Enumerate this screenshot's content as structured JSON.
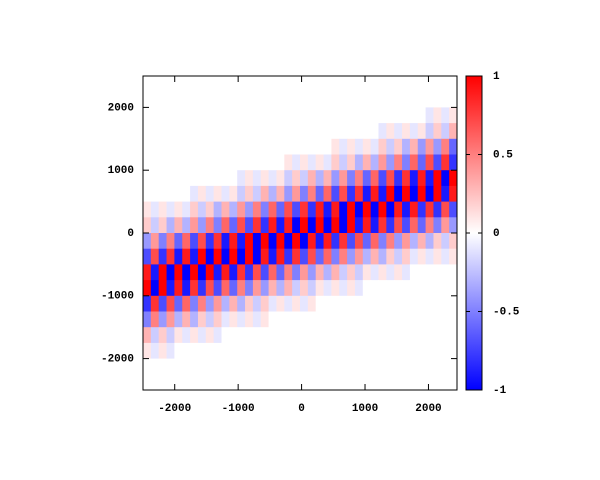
{
  "chart_data": {
    "type": "heatmap",
    "xlim": [
      -2500,
      2450
    ],
    "ylim": [
      -2500,
      2500
    ],
    "xticks": [
      -2000,
      -1000,
      0,
      1000,
      2000
    ],
    "yticks": [
      -2000,
      -1000,
      0,
      1000,
      2000
    ],
    "cblim": [
      -1,
      1
    ],
    "cbticks": [
      -1,
      -0.5,
      0,
      0.5,
      1
    ],
    "colors": [
      "#0000ff",
      "#ffffff",
      "#ff0000"
    ],
    "z": [
      [
        0,
        0,
        0,
        0,
        0,
        0,
        0,
        0,
        0,
        0,
        0,
        0,
        0,
        0,
        0,
        0,
        0,
        0,
        0,
        0,
        0,
        0,
        0,
        0,
        0,
        0,
        0,
        0,
        0,
        0,
        0,
        0,
        0,
        0,
        0,
        0,
        0,
        0,
        0,
        0
      ],
      [
        0,
        0,
        0,
        0,
        0,
        0,
        0,
        0,
        0,
        0,
        0,
        0,
        0,
        0,
        0,
        0,
        0,
        0,
        0,
        0,
        0,
        0,
        0,
        0,
        0,
        0,
        0,
        0,
        0,
        0,
        0,
        0,
        0,
        0,
        0,
        0,
        0,
        0,
        0,
        0
      ],
      [
        0,
        0,
        0,
        0,
        0,
        0,
        0,
        0,
        0,
        0,
        0,
        0,
        0,
        0,
        0,
        0,
        0,
        0,
        0,
        0,
        0,
        0,
        0,
        0,
        0,
        0,
        0,
        0,
        0,
        0,
        0,
        0,
        0,
        0,
        0,
        0,
        -0.1,
        0.1,
        -0.1,
        0.1
      ],
      [
        0,
        0,
        0,
        0,
        0,
        0,
        0,
        0,
        0,
        0,
        0,
        0,
        0,
        0,
        0,
        0,
        0,
        0,
        0,
        0,
        0,
        0,
        0,
        0,
        0,
        0,
        0,
        0,
        0,
        0,
        -0.1,
        0.1,
        -0.1,
        0.1,
        -0.1,
        0.1,
        -0.2,
        0.2,
        -0.2,
        0.3
      ],
      [
        0,
        0,
        0,
        0,
        0,
        0,
        0,
        0,
        0,
        0,
        0,
        0,
        0,
        0,
        0,
        0,
        0,
        0,
        0,
        0,
        0,
        0,
        0,
        0,
        0.1,
        -0.1,
        0.1,
        -0.1,
        0.1,
        -0.1,
        0.2,
        -0.2,
        0.2,
        -0.3,
        0.3,
        -0.4,
        0.4,
        -0.4,
        0.5,
        -0.6
      ],
      [
        0,
        0,
        0,
        0,
        0,
        0,
        0,
        0,
        0,
        0,
        0,
        0,
        0,
        0,
        0,
        0,
        0,
        0,
        0.1,
        -0.1,
        0.1,
        -0.1,
        0.1,
        -0.1,
        0.2,
        -0.2,
        0.2,
        -0.3,
        0.3,
        -0.3,
        0.4,
        -0.4,
        0.5,
        -0.5,
        0.6,
        -0.6,
        0.7,
        -0.7,
        0.8,
        -0.8
      ],
      [
        0,
        0,
        0,
        0,
        0,
        0,
        0,
        0,
        0,
        0,
        0,
        0,
        -0.1,
        0.1,
        -0.1,
        0.1,
        -0.1,
        0.1,
        -0.2,
        0.2,
        -0.2,
        0.3,
        -0.3,
        0.3,
        -0.4,
        0.4,
        -0.5,
        0.5,
        -0.6,
        0.6,
        -0.7,
        0.7,
        -0.8,
        0.8,
        -0.9,
        0.9,
        -0.9,
        1,
        -1,
        1
      ],
      [
        0,
        0,
        0,
        0,
        0,
        0,
        -0.1,
        0.1,
        -0.1,
        0.1,
        -0.1,
        0.1,
        -0.2,
        0.2,
        -0.2,
        0.3,
        -0.3,
        0.3,
        -0.4,
        0.4,
        -0.5,
        0.5,
        -0.6,
        0.6,
        -0.7,
        0.7,
        -0.8,
        0.8,
        -0.9,
        0.9,
        -0.9,
        1,
        -1,
        1,
        -1,
        1,
        -1,
        1,
        -0.9,
        0.9
      ],
      [
        0.1,
        -0.1,
        0.1,
        -0.1,
        0.1,
        -0.1,
        0.2,
        -0.2,
        0.2,
        -0.3,
        0.3,
        -0.3,
        0.4,
        -0.4,
        0.5,
        -0.5,
        0.6,
        -0.6,
        0.7,
        -0.7,
        0.8,
        -0.8,
        0.9,
        -0.9,
        0.9,
        -1,
        1,
        -1,
        1,
        -1,
        1,
        -1,
        0.9,
        -0.9,
        0.9,
        -0.8,
        0.8,
        -0.8,
        0.7,
        -0.7
      ],
      [
        0.2,
        -0.2,
        0.2,
        -0.3,
        0.3,
        -0.3,
        0.4,
        -0.4,
        0.5,
        -0.5,
        0.6,
        -0.6,
        0.7,
        -0.7,
        0.8,
        -0.8,
        0.9,
        -0.9,
        0.9,
        -1,
        1,
        -1,
        1,
        -1,
        1,
        -1,
        1,
        -0.9,
        0.9,
        -0.9,
        0.8,
        -0.8,
        0.7,
        -0.7,
        0.6,
        -0.6,
        0.5,
        -0.5,
        0.4,
        -0.4
      ],
      [
        -0.4,
        0.4,
        -0.5,
        0.5,
        -0.6,
        0.6,
        -0.7,
        0.7,
        -0.8,
        0.8,
        -0.9,
        0.9,
        -0.9,
        1,
        -1,
        1,
        -1,
        1,
        -1,
        1,
        -1,
        0.9,
        -0.9,
        0.9,
        -0.8,
        0.8,
        -0.7,
        0.7,
        -0.6,
        0.6,
        -0.5,
        0.5,
        -0.4,
        0.4,
        -0.3,
        0.3,
        -0.3,
        0.2,
        -0.2,
        0.2
      ],
      [
        -0.7,
        0.7,
        -0.8,
        0.8,
        -0.9,
        0.9,
        -0.9,
        1,
        -1,
        1,
        -1,
        1,
        -1,
        1,
        -1,
        0.9,
        -0.9,
        0.9,
        -0.8,
        0.8,
        -0.7,
        0.7,
        -0.6,
        0.6,
        -0.5,
        0.5,
        -0.4,
        0.4,
        -0.3,
        0.3,
        -0.3,
        0.2,
        -0.2,
        0.2,
        -0.1,
        0.1,
        -0.1,
        0.1,
        -0.1,
        0.1
      ],
      [
        0.9,
        -0.9,
        1,
        -1,
        1,
        -1,
        1,
        -1,
        1,
        -0.9,
        0.9,
        -0.9,
        0.8,
        -0.8,
        0.7,
        -0.7,
        0.6,
        -0.6,
        0.5,
        -0.5,
        0.4,
        -0.4,
        0.3,
        -0.3,
        0.3,
        -0.2,
        0.2,
        -0.2,
        0.1,
        -0.1,
        0.1,
        -0.1,
        0.1,
        -0.1,
        0,
        0,
        0,
        0,
        0,
        0
      ],
      [
        1,
        -1,
        1,
        -0.9,
        0.9,
        -0.9,
        0.8,
        -0.8,
        0.7,
        -0.7,
        0.6,
        -0.6,
        0.5,
        -0.5,
        0.4,
        -0.4,
        0.3,
        -0.3,
        0.3,
        -0.2,
        0.2,
        -0.2,
        0.1,
        -0.1,
        0.1,
        -0.1,
        0.1,
        -0.1,
        0,
        0,
        0,
        0,
        0,
        0,
        0,
        0,
        0,
        0,
        0,
        0
      ],
      [
        -0.8,
        0.8,
        -0.7,
        0.7,
        -0.6,
        0.6,
        -0.5,
        0.5,
        -0.4,
        0.4,
        -0.3,
        0.3,
        -0.3,
        0.2,
        -0.2,
        0.2,
        -0.1,
        0.1,
        -0.1,
        0.1,
        -0.1,
        0.1,
        0,
        0,
        0,
        0,
        0,
        0,
        0,
        0,
        0,
        0,
        0,
        0,
        0,
        0,
        0,
        0,
        0,
        0
      ],
      [
        -0.5,
        0.5,
        -0.4,
        0.4,
        -0.3,
        0.3,
        -0.3,
        0.2,
        -0.2,
        0.2,
        -0.1,
        0.1,
        -0.1,
        0.1,
        -0.1,
        0.1,
        0,
        0,
        0,
        0,
        0,
        0,
        0,
        0,
        0,
        0,
        0,
        0,
        0,
        0,
        0,
        0,
        0,
        0,
        0,
        0,
        0,
        0,
        0,
        0
      ],
      [
        0.3,
        -0.2,
        0.2,
        -0.2,
        0.1,
        -0.1,
        0.1,
        -0.1,
        0.1,
        -0.1,
        0,
        0,
        0,
        0,
        0,
        0,
        0,
        0,
        0,
        0,
        0,
        0,
        0,
        0,
        0,
        0,
        0,
        0,
        0,
        0,
        0,
        0,
        0,
        0,
        0,
        0,
        0,
        0,
        0,
        0
      ],
      [
        0.1,
        -0.1,
        0.1,
        -0.1,
        0,
        0,
        0,
        0,
        0,
        0,
        0,
        0,
        0,
        0,
        0,
        0,
        0,
        0,
        0,
        0,
        0,
        0,
        0,
        0,
        0,
        0,
        0,
        0,
        0,
        0,
        0,
        0,
        0,
        0,
        0,
        0,
        0,
        0,
        0,
        0
      ],
      [
        0,
        0,
        0,
        0,
        0,
        0,
        0,
        0,
        0,
        0,
        0,
        0,
        0,
        0,
        0,
        0,
        0,
        0,
        0,
        0,
        0,
        0,
        0,
        0,
        0,
        0,
        0,
        0,
        0,
        0,
        0,
        0,
        0,
        0,
        0,
        0,
        0,
        0,
        0,
        0
      ],
      [
        0,
        0,
        0,
        0,
        0,
        0,
        0,
        0,
        0,
        0,
        0,
        0,
        0,
        0,
        0,
        0,
        0,
        0,
        0,
        0,
        0,
        0,
        0,
        0,
        0,
        0,
        0,
        0,
        0,
        0,
        0,
        0,
        0,
        0,
        0,
        0,
        0,
        0,
        0,
        0
      ]
    ]
  }
}
